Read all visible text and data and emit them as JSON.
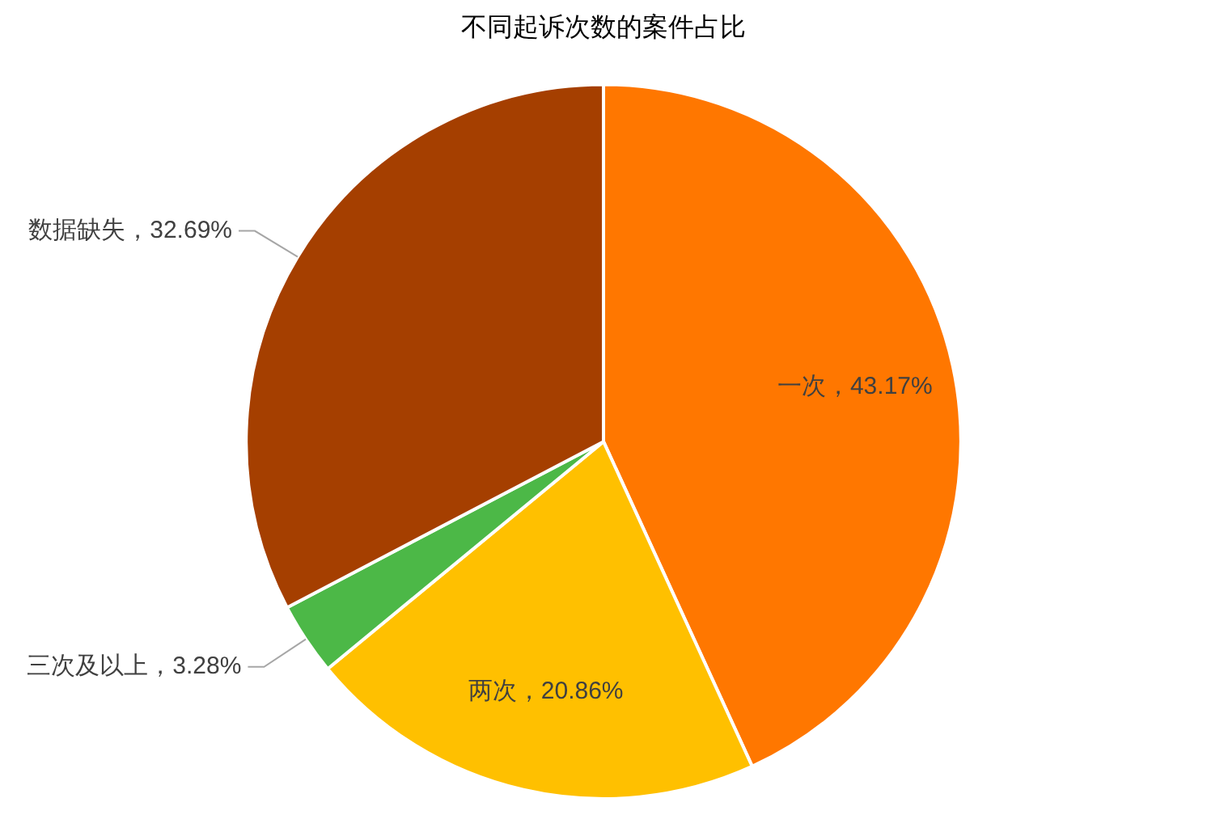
{
  "chart_data": {
    "type": "pie",
    "title": "不同起诉次数的案件占比",
    "categories": [
      "一次",
      "两次",
      "三次及以上",
      "数据缺失"
    ],
    "values": [
      43.17,
      20.86,
      3.28,
      32.69
    ],
    "colors": [
      "#ff7700",
      "#ffc000",
      "#4cb847",
      "#a53f00"
    ],
    "value_labels": [
      "43.17%",
      "20.86%",
      "3.28%",
      "32.69%"
    ],
    "legend": false
  }
}
